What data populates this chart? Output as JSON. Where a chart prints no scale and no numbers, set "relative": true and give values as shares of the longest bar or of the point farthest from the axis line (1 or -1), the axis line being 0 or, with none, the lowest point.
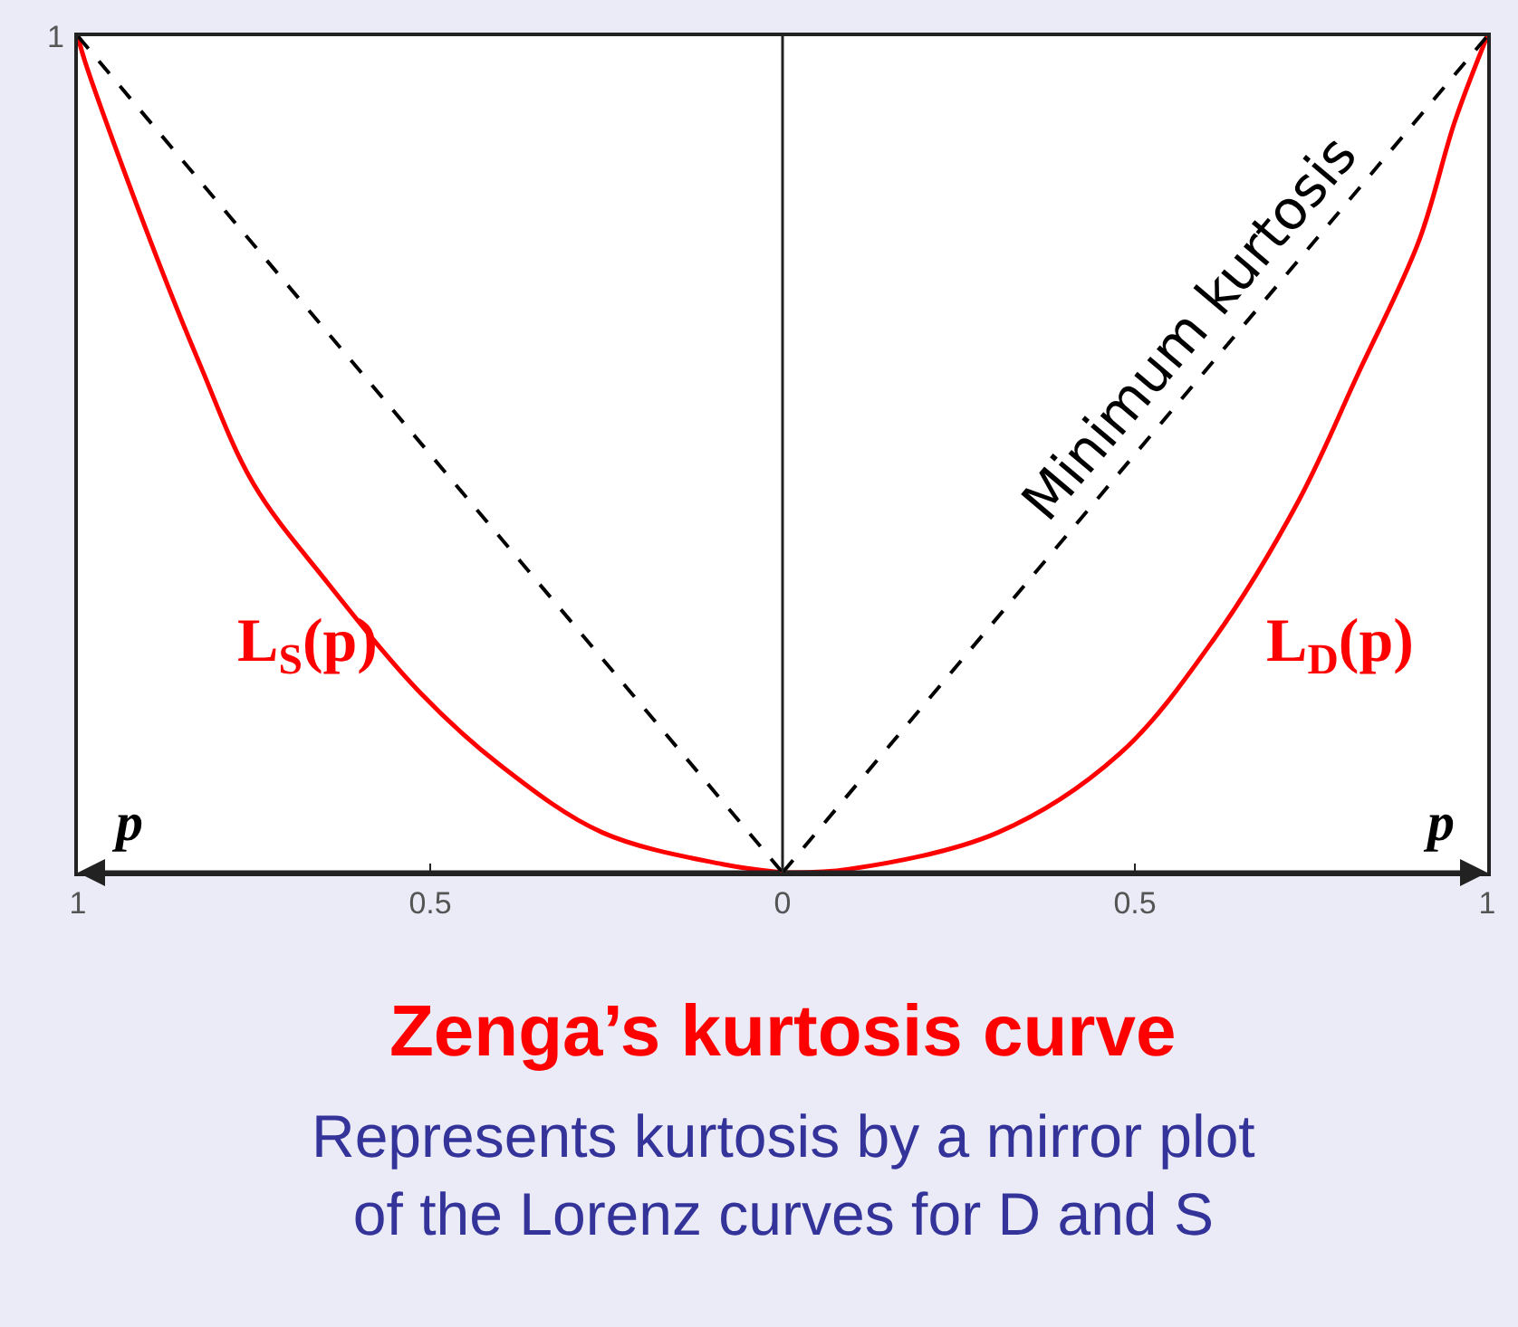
{
  "chart_data": {
    "type": "line",
    "title": "Zenga’s kurtosis curve",
    "subtitle": "Represents kurtosis by a mirror plot of the Lorenz curves for D and S",
    "xlim": [
      -1,
      1
    ],
    "xticks": [
      {
        "value": -1,
        "label": "1"
      },
      {
        "value": -0.5,
        "label": "0.5"
      },
      0,
      0.5,
      1
    ],
    "relative": true,
    "legend": false,
    "marker": "none",
    "tick_labels": "x",
    "annotations": [
      "p",
      "p",
      {
        "text": "1",
        "x": -1,
        "y": 1
      }
    ],
    "ref_lines": [
      {
        "axis": "x",
        "value": 0,
        "color": "#222222"
      }
    ],
    "series": [
      {
        "name": "L$_{S}$(p)",
        "color": "#ff0000",
        "line_style": "solid",
        "x": [
          -1,
          -0.99,
          -0.897,
          -0.828,
          -0.751,
          -0.649,
          -0.513,
          -0.4,
          -0.256,
          -0.085,
          0
        ],
        "values": [
          1,
          0.97,
          0.755,
          0.61,
          0.465,
          0.35,
          0.214,
          0.128,
          0.048,
          0.01,
          0
        ]
      },
      {
        "name": "L$_{D}$(p)",
        "color": "#ff0000",
        "line_style": "solid",
        "x": [
          0,
          0.094,
          0.306,
          0.477,
          0.612,
          0.732,
          0.816,
          0.903,
          0.954,
          1
        ],
        "values": [
          0,
          0.004,
          0.048,
          0.141,
          0.279,
          0.444,
          0.595,
          0.755,
          0.898,
          1
        ]
      },
      {
        "color": "#000000",
        "line_style": "dashed",
        "x": [
          -1,
          0
        ],
        "values": [
          1,
          0
        ]
      },
      {
        "name": "Minimum kurtosis",
        "color": "#000000",
        "line_style": "dashed",
        "x": [
          0,
          1
        ],
        "values": [
          0,
          1
        ]
      }
    ]
  }
}
